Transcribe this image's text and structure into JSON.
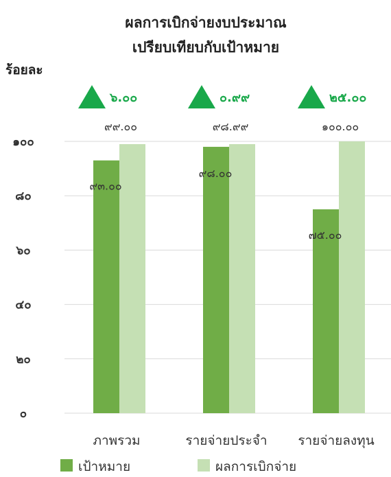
{
  "chart_data": {
    "type": "bar",
    "title_line1": "ผลการเบิกจ่ายงบประมาณ",
    "title_line2": "เปรียบเทียบกับเป้าหมาย",
    "ylabel": "ร้อยละ",
    "xlabel": "",
    "ylim": [
      0,
      100
    ],
    "y_ticks": [
      0,
      20,
      40,
      60,
      80,
      100
    ],
    "y_tick_labels": [
      "๐",
      "๒๐",
      "๔๐",
      "๖๐",
      "๘๐",
      "๑๐๐"
    ],
    "grid": true,
    "categories": [
      "ภาพรวม",
      "รายจ่ายประจำ",
      "รายจ่ายลงทุน"
    ],
    "series": [
      {
        "name": "เป้าหมาย",
        "color": "#70ad47",
        "values": [
          93.0,
          98.0,
          75.0
        ],
        "value_labels": [
          "๙๓.๐๐",
          "๙๘.๐๐",
          "๗๕.๐๐"
        ]
      },
      {
        "name": "ผลการเบิกจ่าย",
        "color": "#c5e0b4",
        "values": [
          99.0,
          98.99,
          100.0
        ],
        "value_labels": [
          "๙๙.๐๐",
          "๙๘.๙๙",
          "๑๐๐.๐๐"
        ]
      }
    ],
    "differences": [
      6.0,
      0.99,
      25.0
    ],
    "difference_labels": [
      "๖.๐๐",
      "๐.๙๙",
      "๒๕.๐๐"
    ],
    "difference_icon": "up-triangle-icon",
    "difference_color": "#19a84a",
    "legend_position": "bottom"
  }
}
